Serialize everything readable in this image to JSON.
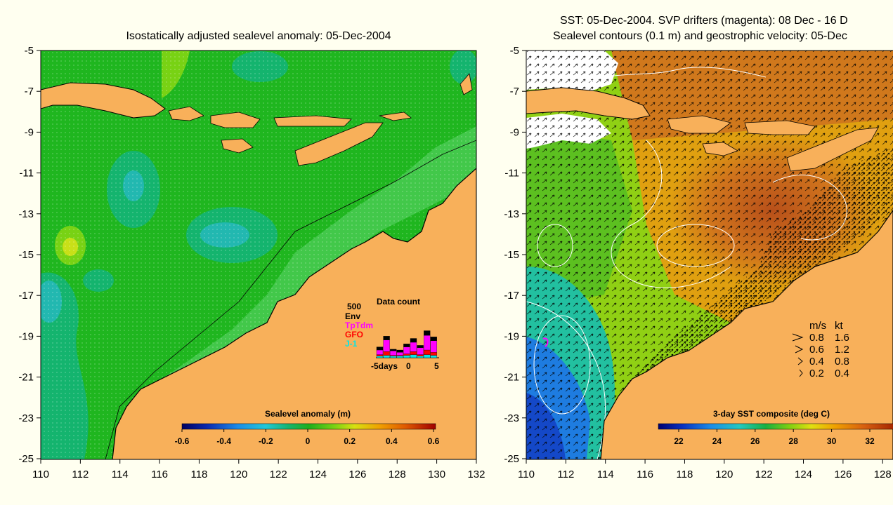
{
  "left_panel": {
    "title": "Isostatically adjusted sealevel anomaly: 05-Dec-2004",
    "y_ticks": [
      "-5",
      "-7",
      "-9",
      "-11",
      "-13",
      "-15",
      "-17",
      "-19",
      "-21",
      "-23",
      "-25"
    ],
    "x_ticks": [
      "110",
      "112",
      "114",
      "116",
      "118",
      "120",
      "122",
      "124",
      "126",
      "128",
      "130",
      "132"
    ],
    "colorbar": {
      "title": "Sealevel anomaly (m)",
      "ticks": [
        "-0.6",
        "-0.4",
        "-0.2",
        "0",
        "0.2",
        "0.4",
        "0.6"
      ]
    },
    "data_count": {
      "title": "Data count",
      "scale_label": "500",
      "legend": [
        {
          "label": "Env",
          "color": "#000000"
        },
        {
          "label": "TpTdm",
          "color": "#ff00ff"
        },
        {
          "label": "GFO",
          "color": "#ff0000"
        },
        {
          "label": "J-1",
          "color": "#00e8e8"
        }
      ],
      "x_labels": [
        "-5days",
        "0",
        "5"
      ],
      "bars": [
        {
          "env": 0.2,
          "tp": 0.3,
          "gfo": 0.1,
          "j1": 0.1
        },
        {
          "env": 0.25,
          "tp": 0.75,
          "gfo": 0.25,
          "j1": 0.15
        },
        {
          "env": 0.1,
          "tp": 0.3,
          "gfo": 0.05,
          "j1": 0.1
        },
        {
          "env": 0.15,
          "tp": 0.2,
          "gfo": 0.05,
          "j1": 0.1
        },
        {
          "env": 0.2,
          "tp": 0.45,
          "gfo": 0.1,
          "j1": 0.15
        },
        {
          "env": 0.25,
          "tp": 0.6,
          "gfo": 0.2,
          "j1": 0.2
        },
        {
          "env": 0.15,
          "tp": 0.45,
          "gfo": 0.1,
          "j1": 0.1
        },
        {
          "env": 0.3,
          "tp": 0.95,
          "gfo": 0.3,
          "j1": 0.2
        },
        {
          "env": 0.25,
          "tp": 0.75,
          "gfo": 0.2,
          "j1": 0.15
        }
      ]
    }
  },
  "right_panel": {
    "title_line1": "SST: 05-Dec-2004. SVP drifters (magenta): 08 Dec - 16 D",
    "title_line2": "Sealevel contours (0.1 m) and geostrophic velocity: 05-Dec",
    "y_ticks": [
      "-5",
      "-7",
      "-9",
      "-11",
      "-13",
      "-15",
      "-17",
      "-19",
      "-21",
      "-23",
      "-25"
    ],
    "x_ticks": [
      "110",
      "112",
      "114",
      "116",
      "118",
      "120",
      "122",
      "124",
      "126",
      "128"
    ],
    "colorbar": {
      "title": "3-day SST composite (deg C)",
      "ticks": [
        "22",
        "24",
        "26",
        "28",
        "30",
        "32"
      ]
    },
    "speed_legend": {
      "header_ms": "m/s",
      "header_kt": "kt",
      "rows": [
        {
          "ms": "0.8",
          "kt": "1.6"
        },
        {
          "ms": "0.6",
          "kt": "1.2"
        },
        {
          "ms": "0.4",
          "kt": "0.8"
        },
        {
          "ms": "0.2",
          "kt": "0.4"
        }
      ]
    }
  },
  "colors": {
    "background": "#fffff0",
    "land": "#f8b05a",
    "sea_green": "#1fb61f",
    "sea_light": "#42c84a",
    "sst_warm": "#c8641c",
    "sst_cool": "#1e64dc"
  }
}
